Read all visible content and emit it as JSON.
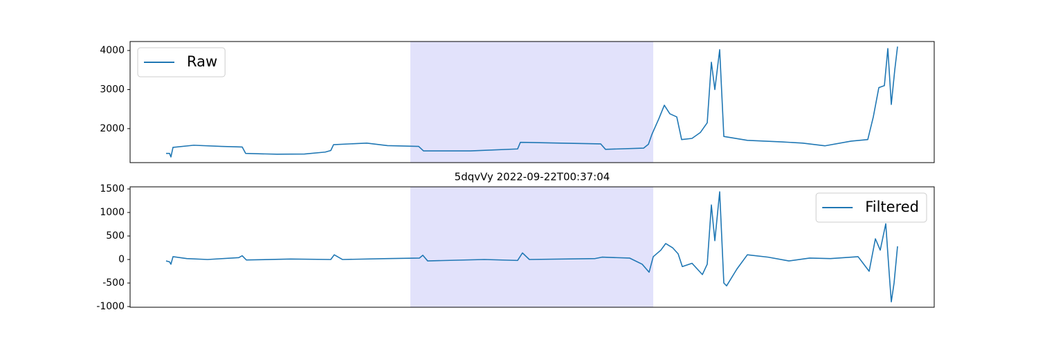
{
  "chart_data": [
    {
      "type": "line",
      "series": [
        {
          "name": "Raw",
          "color": "#1f77b4",
          "x": [
            0,
            0.5,
            0.7,
            1,
            4,
            8,
            11,
            11.5,
            16,
            20,
            23,
            23.8,
            24.2,
            29,
            32,
            36.5,
            37.2,
            44,
            50.8,
            51.2,
            57,
            62.8,
            63.5,
            69,
            69.7,
            70.2,
            71.2,
            72,
            72.8,
            73.8,
            74.5,
            76,
            77.2,
            78.2,
            78.8,
            79.3,
            80,
            80.6,
            84,
            89,
            92,
            95.2,
            99,
            101.4,
            102.2,
            103,
            103.8,
            104.3,
            104.8,
            105.3,
            105.7
          ],
          "values": [
            1365,
            1365,
            1275,
            1520,
            1575,
            1545,
            1530,
            1365,
            1345,
            1350,
            1400,
            1440,
            1590,
            1630,
            1565,
            1545,
            1430,
            1430,
            1480,
            1650,
            1630,
            1610,
            1470,
            1500,
            1600,
            1850,
            2250,
            2600,
            2380,
            2300,
            1720,
            1750,
            1900,
            2150,
            3700,
            3000,
            4020,
            1800,
            1700,
            1660,
            1630,
            1560,
            1680,
            1720,
            2300,
            3050,
            3100,
            4050,
            2620,
            3500,
            4100
          ]
        }
      ],
      "xlim": [
        -5.2,
        111.0
      ],
      "ylim": [
        1130,
        4230
      ],
      "yticks": [
        2000,
        3000,
        4000
      ],
      "shaded_span": [
        35.3,
        70.4
      ],
      "shade_color": "#e2e2fb",
      "legend": "upper left"
    },
    {
      "type": "line",
      "title": "5dqvVy 2022-09-22T00:37:04",
      "series": [
        {
          "name": "Filtered",
          "color": "#1f77b4",
          "x": [
            0,
            0.5,
            0.7,
            1,
            3,
            6,
            10.5,
            11,
            11.6,
            18,
            23.8,
            24.3,
            25.5,
            32,
            36.6,
            37.1,
            37.8,
            46,
            50.8,
            51.5,
            52.5,
            62,
            63,
            67,
            68.8,
            69.8,
            70.4,
            71.5,
            72.2,
            73.2,
            74,
            74.6,
            76,
            77.5,
            78.2,
            78.8,
            79.3,
            80,
            80.6,
            81,
            82.5,
            84,
            87,
            90,
            93,
            96,
            100,
            101.6,
            102.5,
            103.2,
            104,
            104.5,
            104.8,
            105.2,
            105.7
          ],
          "values": [
            -30,
            -50,
            -100,
            60,
            20,
            0,
            40,
            80,
            -10,
            10,
            0,
            100,
            0,
            20,
            30,
            90,
            -30,
            0,
            -20,
            140,
            0,
            20,
            50,
            30,
            -100,
            -270,
            60,
            200,
            340,
            250,
            120,
            -150,
            -80,
            -320,
            -100,
            1160,
            400,
            1440,
            -500,
            -560,
            -200,
            100,
            50,
            -30,
            30,
            20,
            60,
            -250,
            440,
            200,
            760,
            -300,
            -900,
            -500,
            280
          ]
        }
      ],
      "xlim": [
        -5.2,
        111.0
      ],
      "ylim": [
        -1015,
        1545
      ],
      "yticks": [
        -1000,
        -500,
        0,
        500,
        1000,
        1500
      ],
      "shaded_span": [
        35.3,
        70.4
      ],
      "shade_color": "#e2e2fb",
      "legend": "upper right"
    }
  ]
}
